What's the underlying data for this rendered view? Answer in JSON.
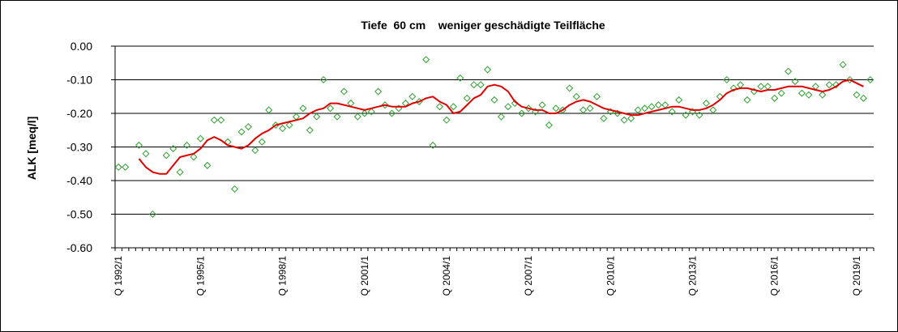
{
  "chart_data": {
    "type": "line",
    "title": "Tiefe  60 cm    weniger geschädigte Teilfläche",
    "ylabel": "ALK [meq/l]",
    "xlabel": "",
    "ylim": [
      -0.6,
      0.0
    ],
    "grid": true,
    "yticks": [
      "0.00",
      "-0.10",
      "-0.20",
      "-0.30",
      "-0.40",
      "-0.50",
      "-0.60"
    ],
    "xtick_labels": [
      "Q 1992/1",
      "Q 1995/1",
      "Q 1998/1",
      "Q 2001/1",
      "Q 2004/1",
      "Q 2007/1",
      "Q 2010/1",
      "Q 2013/1",
      "Q 2016/1",
      "Q 2019/1"
    ],
    "x_start": "Q 1992/1",
    "x_end": "Q 2020/1",
    "colors": {
      "points": "#2ca02c",
      "trend": "#e00000",
      "grid": "#000000"
    },
    "series": [
      {
        "marker": "diamond",
        "values": [
          -0.36,
          -0.36,
          null,
          -0.295,
          -0.32,
          -0.5,
          null,
          -0.325,
          -0.305,
          -0.375,
          -0.295,
          -0.33,
          -0.275,
          -0.355,
          -0.22,
          -0.22,
          -0.285,
          -0.425,
          -0.255,
          -0.24,
          -0.31,
          -0.285,
          -0.19,
          -0.235,
          -0.245,
          -0.235,
          -0.21,
          -0.185,
          -0.25,
          -0.21,
          -0.1,
          -0.185,
          -0.21,
          -0.135,
          -0.17,
          -0.21,
          -0.2,
          -0.195,
          -0.135,
          -0.175,
          -0.2,
          -0.185,
          -0.17,
          -0.15,
          -0.165,
          -0.04,
          -0.295,
          -0.18,
          -0.22,
          -0.18,
          -0.095,
          -0.155,
          -0.115,
          -0.115,
          -0.07,
          -0.16,
          -0.21,
          -0.18,
          -0.17,
          -0.2,
          -0.185,
          -0.195,
          -0.175,
          -0.235,
          -0.185,
          -0.19,
          -0.125,
          -0.15,
          -0.19,
          -0.185,
          -0.15,
          -0.215,
          -0.195,
          -0.2,
          -0.22,
          -0.215,
          -0.19,
          -0.185,
          -0.18,
          -0.175,
          -0.175,
          -0.195,
          -0.16,
          -0.205,
          -0.195,
          -0.205,
          -0.17,
          -0.19,
          -0.15,
          -0.1,
          -0.125,
          -0.115,
          -0.16,
          -0.135,
          -0.12,
          -0.12,
          -0.155,
          -0.14,
          -0.075,
          -0.105,
          -0.14,
          -0.145,
          -0.12,
          -0.145,
          -0.115,
          -0.115,
          -0.055,
          -0.1,
          -0.145,
          -0.155,
          -0.1
        ]
      },
      {
        "marker": "line",
        "values": [
          null,
          null,
          null,
          -0.335,
          -0.36,
          -0.375,
          -0.38,
          -0.38,
          -0.355,
          -0.33,
          -0.325,
          -0.32,
          -0.305,
          -0.28,
          -0.27,
          -0.28,
          -0.295,
          -0.3,
          -0.305,
          -0.295,
          -0.275,
          -0.26,
          -0.25,
          -0.235,
          -0.23,
          -0.225,
          -0.22,
          -0.215,
          -0.2,
          -0.19,
          -0.185,
          -0.17,
          -0.17,
          -0.175,
          -0.18,
          -0.185,
          -0.19,
          -0.185,
          -0.18,
          -0.175,
          -0.18,
          -0.18,
          -0.18,
          -0.17,
          -0.165,
          -0.155,
          -0.15,
          -0.165,
          -0.175,
          -0.2,
          -0.195,
          -0.175,
          -0.155,
          -0.145,
          -0.12,
          -0.115,
          -0.12,
          -0.135,
          -0.165,
          -0.18,
          -0.185,
          -0.19,
          -0.19,
          -0.2,
          -0.2,
          -0.19,
          -0.175,
          -0.165,
          -0.16,
          -0.165,
          -0.175,
          -0.185,
          -0.19,
          -0.195,
          -0.2,
          -0.205,
          -0.205,
          -0.2,
          -0.195,
          -0.19,
          -0.185,
          -0.18,
          -0.18,
          -0.185,
          -0.19,
          -0.19,
          -0.185,
          -0.175,
          -0.16,
          -0.14,
          -0.13,
          -0.125,
          -0.125,
          -0.13,
          -0.135,
          -0.13,
          -0.13,
          -0.125,
          -0.12,
          -0.12,
          -0.12,
          -0.125,
          -0.13,
          -0.135,
          -0.13,
          -0.12,
          -0.105,
          -0.1,
          -0.11,
          -0.12,
          null
        ]
      }
    ]
  }
}
